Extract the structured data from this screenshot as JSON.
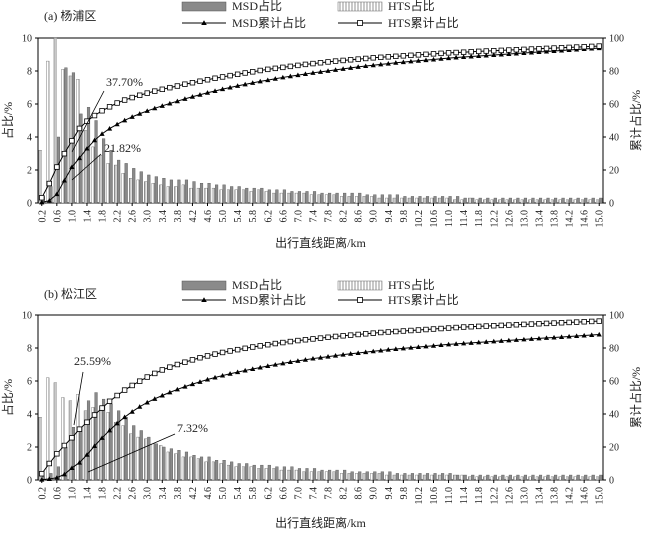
{
  "chart_data": [
    {
      "type": "bar",
      "panel_label": "(a) 杨浦区",
      "xlabel": "出行直线距离/km",
      "ylabel_left": "占比/%",
      "ylabel_right": "累计占比/%",
      "ylim_left": [
        0,
        10
      ],
      "ylim_right": [
        0,
        100
      ],
      "yticks_left": [
        "0",
        "2",
        "4",
        "6",
        "8",
        "10"
      ],
      "yticks_right": [
        "0",
        "20",
        "40",
        "60",
        "80",
        "100"
      ],
      "xticks": [
        "0.2",
        "0.6",
        "1.0",
        "1.4",
        "1.8",
        "2.2",
        "2.6",
        "3.0",
        "3.4",
        "3.8",
        "4.2",
        "4.6",
        "5.0",
        "5.4",
        "5.8",
        "6.2",
        "6.6",
        "7.0",
        "7.4",
        "7.8",
        "8.2",
        "8.6",
        "9.0",
        "9.4",
        "9.8",
        "10.2",
        "10.6",
        "11.0",
        "11.4",
        "11.8",
        "12.2",
        "12.6",
        "13.0",
        "13.4",
        "13.8",
        "14.2",
        "14.6",
        "15.0"
      ],
      "legend": {
        "msd_bar": "MSD占比",
        "hts_bar": "HTS占比",
        "msd_cum": "MSD累计占比",
        "hts_cum": "HTS累计占比"
      },
      "annotations": [
        {
          "text": "37.70%",
          "at_km": 1.0,
          "at_cum": 37.7
        },
        {
          "text": "21.82%",
          "at_km": 1.0,
          "at_cum": 21.82
        }
      ],
      "x_km": [
        0.2,
        0.4,
        0.6,
        0.8,
        1.0,
        1.2,
        1.4,
        1.6,
        1.8,
        2.0,
        2.2,
        2.4,
        2.6,
        2.8,
        3.0,
        3.2,
        3.4,
        3.6,
        3.8,
        4.0,
        4.2,
        4.4,
        4.6,
        4.8,
        5.0,
        5.2,
        5.4,
        5.6,
        5.8,
        6.0,
        6.2,
        6.4,
        6.6,
        6.8,
        7.0,
        7.2,
        7.4,
        7.6,
        7.8,
        8.0,
        8.2,
        8.4,
        8.6,
        8.8,
        9.0,
        9.2,
        9.4,
        9.6,
        9.8,
        10.0,
        10.2,
        10.4,
        10.6,
        10.8,
        11.0,
        11.2,
        11.4,
        11.6,
        11.8,
        12.0,
        12.2,
        12.4,
        12.6,
        12.8,
        13.0,
        13.2,
        13.4,
        13.6,
        13.8,
        14.0,
        14.2,
        14.4,
        14.6,
        14.8,
        15.0
      ],
      "series": [
        {
          "name": "MSD占比",
          "values": [
            0.4,
            1.0,
            4.0,
            8.2,
            7.9,
            5.4,
            5.8,
            5.0,
            3.9,
            3.2,
            2.6,
            2.4,
            2.1,
            1.9,
            1.7,
            1.6,
            1.5,
            1.4,
            1.4,
            1.4,
            1.3,
            1.2,
            1.2,
            1.1,
            1.1,
            1.0,
            1.0,
            0.9,
            0.9,
            0.9,
            0.8,
            0.8,
            0.8,
            0.7,
            0.7,
            0.7,
            0.7,
            0.6,
            0.6,
            0.6,
            0.6,
            0.6,
            0.6,
            0.5,
            0.5,
            0.5,
            0.5,
            0.5,
            0.4,
            0.4,
            0.4,
            0.4,
            0.4,
            0.4,
            0.4,
            0.4,
            0.3,
            0.3,
            0.3,
            0.3,
            0.3,
            0.3,
            0.3,
            0.3,
            0.3,
            0.3,
            0.3,
            0.3,
            0.3,
            0.3,
            0.3,
            0.3,
            0.3,
            0.3,
            0.3
          ]
        },
        {
          "name": "HTS占比",
          "values": [
            3.2,
            8.6,
            10.0,
            8.1,
            7.7,
            7.5,
            4.4,
            3.4,
            2.9,
            2.4,
            2.3,
            1.8,
            1.5,
            1.4,
            1.3,
            1.2,
            1.1,
            1.0,
            1.0,
            1.1,
            0.9,
            0.9,
            0.9,
            0.9,
            0.8,
            0.8,
            0.8,
            0.8,
            0.7,
            0.8,
            0.7,
            0.6,
            0.6,
            0.6,
            0.6,
            0.6,
            0.5,
            0.5,
            0.5,
            0.5,
            0.4,
            0.4,
            0.4,
            0.4,
            0.4,
            0.3,
            0.3,
            0.3,
            0.3,
            0.3,
            0.3,
            0.3,
            0.3,
            0.3,
            0.3,
            0.2,
            0.2,
            0.3,
            0.2,
            0.2,
            0.2,
            0.2,
            0.2,
            0.2,
            0.2,
            0.2,
            0.2,
            0.2,
            0.2,
            0.2,
            0.2,
            0.2,
            0.2,
            0.2,
            0.2
          ]
        },
        {
          "name": "MSD累计占比",
          "values": [
            0.4,
            1.4,
            5.4,
            13.6,
            21.8,
            27.2,
            33.0,
            38.0,
            41.9,
            45.1,
            47.7,
            50.1,
            52.2,
            54.1,
            55.8,
            57.4,
            58.9,
            60.3,
            61.7,
            63.1,
            64.4,
            65.6,
            66.8,
            67.9,
            69.0,
            70.0,
            71.0,
            71.9,
            72.8,
            73.7,
            74.5,
            75.3,
            76.1,
            76.8,
            77.5,
            78.2,
            78.9,
            79.5,
            80.1,
            80.7,
            81.3,
            81.9,
            82.5,
            83.0,
            83.5,
            84.0,
            84.5,
            85.0,
            85.4,
            85.8,
            86.2,
            86.6,
            87.0,
            87.4,
            87.8,
            88.2,
            88.5,
            88.8,
            89.1,
            89.4,
            89.7,
            90.0,
            90.3,
            90.6,
            90.9,
            91.2,
            91.5,
            91.8,
            92.1,
            92.4,
            92.7,
            93.0,
            93.3,
            93.6,
            93.9
          ]
        },
        {
          "name": "HTS累计占比",
          "values": [
            3.2,
            11.8,
            21.8,
            29.9,
            37.7,
            45.2,
            49.6,
            53.0,
            55.9,
            58.3,
            60.6,
            62.4,
            63.9,
            65.3,
            66.6,
            67.8,
            68.9,
            69.9,
            70.9,
            72.0,
            72.9,
            73.8,
            74.7,
            75.6,
            76.4,
            77.2,
            78.0,
            78.8,
            79.5,
            80.3,
            81.0,
            81.6,
            82.2,
            82.8,
            83.4,
            84.0,
            84.5,
            85.0,
            85.5,
            86.0,
            86.4,
            86.8,
            87.2,
            87.6,
            88.0,
            88.3,
            88.6,
            88.9,
            89.2,
            89.5,
            89.8,
            90.1,
            90.4,
            90.7,
            91.0,
            91.2,
            91.4,
            91.7,
            91.9,
            92.1,
            92.3,
            92.5,
            92.7,
            92.9,
            93.1,
            93.3,
            93.5,
            93.7,
            93.9,
            94.1,
            94.3,
            94.5,
            94.7,
            94.9,
            95.1
          ]
        }
      ]
    },
    {
      "type": "bar",
      "panel_label": "(b) 松江区",
      "xlabel": "出行直线距离/km",
      "ylabel_left": "占比/%",
      "ylabel_right": "累计占比/%",
      "ylim_left": [
        0,
        10
      ],
      "ylim_right": [
        0,
        100
      ],
      "yticks_left": [
        "0",
        "2",
        "4",
        "6",
        "8",
        "10"
      ],
      "yticks_right": [
        "0",
        "20",
        "40",
        "60",
        "80",
        "100"
      ],
      "xticks": [
        "0.2",
        "0.6",
        "1.0",
        "1.4",
        "1.8",
        "2.2",
        "2.6",
        "3.0",
        "3.4",
        "3.8",
        "4.2",
        "4.6",
        "5.0",
        "5.4",
        "5.8",
        "6.2",
        "6.6",
        "7.0",
        "7.4",
        "7.8",
        "8.2",
        "8.6",
        "9.0",
        "9.4",
        "9.8",
        "10.2",
        "10.6",
        "11.0",
        "11.4",
        "11.8",
        "12.2",
        "12.6",
        "13.0",
        "13.4",
        "13.8",
        "14.2",
        "14.6",
        "15.0"
      ],
      "legend": {
        "msd_bar": "MSD占比",
        "hts_bar": "HTS占比",
        "msd_cum": "MSD累计占比",
        "hts_cum": "HTS累计占比"
      },
      "annotations": [
        {
          "text": "25.59%",
          "at_km": 1.0,
          "at_cum": 25.59
        },
        {
          "text": "7.32%",
          "at_km": 1.0,
          "at_cum": 7.32
        }
      ],
      "x_km": [
        0.2,
        0.4,
        0.6,
        0.8,
        1.0,
        1.2,
        1.4,
        1.6,
        1.8,
        2.0,
        2.2,
        2.4,
        2.6,
        2.8,
        3.0,
        3.2,
        3.4,
        3.6,
        3.8,
        4.0,
        4.2,
        4.4,
        4.6,
        4.8,
        5.0,
        5.2,
        5.4,
        5.6,
        5.8,
        6.0,
        6.2,
        6.4,
        6.6,
        6.8,
        7.0,
        7.2,
        7.4,
        7.6,
        7.8,
        8.0,
        8.2,
        8.4,
        8.6,
        8.8,
        9.0,
        9.2,
        9.4,
        9.6,
        9.8,
        10.0,
        10.2,
        10.4,
        10.6,
        10.8,
        11.0,
        11.2,
        11.4,
        11.6,
        11.8,
        12.0,
        12.2,
        12.4,
        12.6,
        12.8,
        13.0,
        13.2,
        13.4,
        13.6,
        13.8,
        14.0,
        14.2,
        14.4,
        14.6,
        14.8,
        15.0
      ],
      "series": [
        {
          "name": "MSD占比",
          "values": [
            0.2,
            0.4,
            0.8,
            2.0,
            3.2,
            3.2,
            4.8,
            5.3,
            4.9,
            4.6,
            4.2,
            3.8,
            3.3,
            3.0,
            2.6,
            2.2,
            2.0,
            1.9,
            1.8,
            1.7,
            1.5,
            1.4,
            1.4,
            1.2,
            1.2,
            1.1,
            1.0,
            1.0,
            0.9,
            0.9,
            0.9,
            0.8,
            0.8,
            0.8,
            0.7,
            0.7,
            0.7,
            0.6,
            0.6,
            0.6,
            0.6,
            0.5,
            0.5,
            0.5,
            0.5,
            0.5,
            0.5,
            0.4,
            0.4,
            0.4,
            0.4,
            0.4,
            0.4,
            0.4,
            0.4,
            0.3,
            0.3,
            0.3,
            0.3,
            0.3,
            0.3,
            0.3,
            0.3,
            0.3,
            0.3,
            0.3,
            0.3,
            0.3,
            0.3,
            0.3,
            0.3,
            0.3,
            0.3,
            0.3,
            0.3
          ]
        },
        {
          "name": "HTS占比",
          "values": [
            3.8,
            6.2,
            5.9,
            5.0,
            4.8,
            5.2,
            4.2,
            4.4,
            4.2,
            4.1,
            3.5,
            3.3,
            2.8,
            2.6,
            2.5,
            2.2,
            2.1,
            1.7,
            1.6,
            1.4,
            1.4,
            1.3,
            1.1,
            1.1,
            1.0,
            0.9,
            0.8,
            0.8,
            0.8,
            0.7,
            0.7,
            0.7,
            0.6,
            0.6,
            0.6,
            0.5,
            0.5,
            0.5,
            0.5,
            0.5,
            0.4,
            0.4,
            0.4,
            0.4,
            0.4,
            0.4,
            0.3,
            0.3,
            0.3,
            0.3,
            0.3,
            0.3,
            0.3,
            0.3,
            0.3,
            0.3,
            0.3,
            0.2,
            0.2,
            0.2,
            0.2,
            0.2,
            0.2,
            0.2,
            0.2,
            0.2,
            0.2,
            0.2,
            0.2,
            0.2,
            0.2,
            0.2,
            0.2,
            0.2,
            0.2
          ]
        },
        {
          "name": "MSD累计占比",
          "values": [
            0.2,
            0.6,
            1.4,
            3.4,
            7.3,
            10.5,
            15.3,
            20.6,
            25.5,
            30.1,
            34.3,
            38.1,
            41.4,
            44.4,
            47.0,
            49.2,
            51.2,
            53.1,
            54.9,
            56.6,
            58.1,
            59.5,
            60.9,
            62.1,
            63.3,
            64.4,
            65.4,
            66.4,
            67.3,
            68.2,
            69.1,
            69.9,
            70.7,
            71.5,
            72.2,
            72.9,
            73.6,
            74.2,
            74.8,
            75.4,
            76.0,
            76.5,
            77.0,
            77.5,
            78.0,
            78.5,
            79.0,
            79.4,
            79.8,
            80.2,
            80.6,
            81.0,
            81.4,
            81.8,
            82.2,
            82.5,
            82.8,
            83.1,
            83.4,
            83.7,
            84.0,
            84.3,
            84.6,
            84.9,
            85.2,
            85.5,
            85.8,
            86.1,
            86.4,
            86.7,
            87.0,
            87.3,
            87.6,
            87.9,
            88.2
          ]
        },
        {
          "name": "HTS累计占比",
          "values": [
            3.8,
            10.0,
            15.9,
            20.9,
            25.6,
            30.8,
            35.0,
            39.4,
            43.6,
            47.7,
            51.2,
            54.5,
            57.3,
            59.9,
            62.4,
            64.6,
            66.7,
            68.4,
            70.0,
            71.4,
            72.8,
            74.1,
            75.2,
            76.3,
            77.3,
            78.2,
            79.0,
            79.8,
            80.6,
            81.3,
            82.0,
            82.7,
            83.3,
            83.9,
            84.5,
            85.0,
            85.5,
            86.0,
            86.5,
            87.0,
            87.4,
            87.8,
            88.2,
            88.6,
            89.0,
            89.4,
            89.7,
            90.0,
            90.3,
            90.6,
            90.9,
            91.2,
            91.5,
            91.8,
            92.1,
            92.4,
            92.7,
            92.9,
            93.1,
            93.3,
            93.5,
            93.7,
            93.9,
            94.1,
            94.3,
            94.5,
            94.7,
            94.9,
            95.1,
            95.3,
            95.5,
            95.7,
            95.9,
            96.1,
            96.3
          ]
        }
      ]
    }
  ]
}
